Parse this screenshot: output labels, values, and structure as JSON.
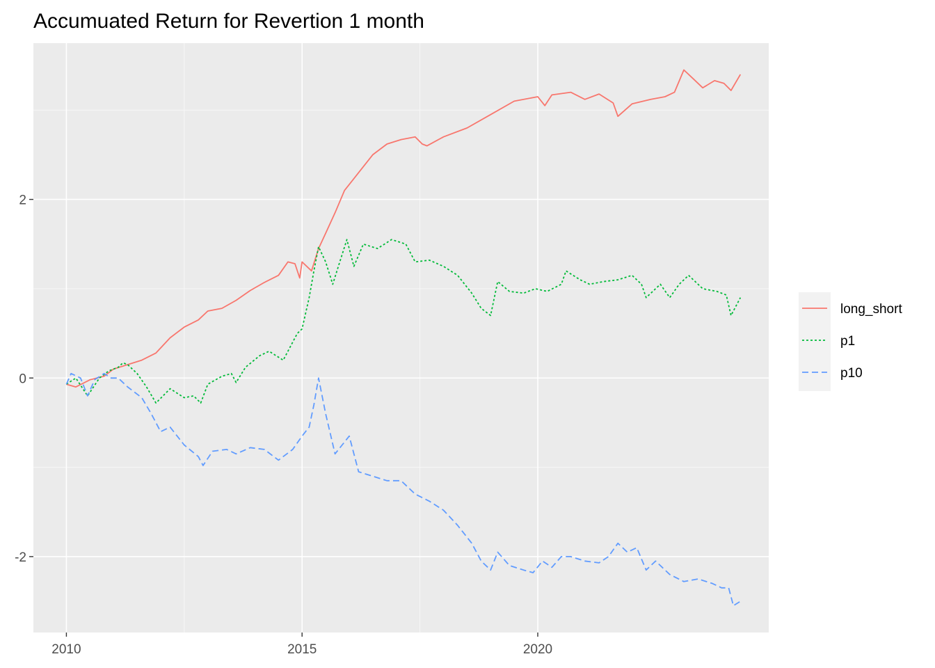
{
  "chart_data": {
    "type": "line",
    "title": "Accumuated Return for Revertion 1 month",
    "xlabel": "",
    "ylabel": "",
    "xlim": [
      2009.3,
      2024.9
    ],
    "ylim": [
      -2.85,
      3.75
    ],
    "x_ticks": [
      2010,
      2015,
      2020
    ],
    "x_tick_labels": [
      "2010",
      "2015",
      "2020"
    ],
    "y_ticks": [
      -2,
      0,
      2
    ],
    "y_tick_labels": [
      "-2",
      "0",
      "2"
    ],
    "grid": true,
    "legend_position": "right",
    "series": [
      {
        "name": "long_short",
        "color": "#F8766D",
        "dash": "solid",
        "points": [
          [
            2010.0,
            -0.07
          ],
          [
            2010.2,
            -0.1
          ],
          [
            2010.5,
            -0.02
          ],
          [
            2010.8,
            0.02
          ],
          [
            2011.0,
            0.1
          ],
          [
            2011.3,
            0.15
          ],
          [
            2011.6,
            0.2
          ],
          [
            2011.9,
            0.28
          ],
          [
            2012.2,
            0.45
          ],
          [
            2012.5,
            0.57
          ],
          [
            2012.8,
            0.65
          ],
          [
            2013.0,
            0.75
          ],
          [
            2013.3,
            0.78
          ],
          [
            2013.6,
            0.87
          ],
          [
            2013.9,
            0.98
          ],
          [
            2014.2,
            1.07
          ],
          [
            2014.5,
            1.15
          ],
          [
            2014.7,
            1.3
          ],
          [
            2014.85,
            1.28
          ],
          [
            2014.95,
            1.12
          ],
          [
            2015.0,
            1.3
          ],
          [
            2015.2,
            1.2
          ],
          [
            2015.35,
            1.45
          ],
          [
            2015.5,
            1.62
          ],
          [
            2015.7,
            1.85
          ],
          [
            2015.9,
            2.1
          ],
          [
            2016.2,
            2.3
          ],
          [
            2016.5,
            2.5
          ],
          [
            2016.8,
            2.62
          ],
          [
            2017.1,
            2.67
          ],
          [
            2017.4,
            2.7
          ],
          [
            2017.55,
            2.62
          ],
          [
            2017.65,
            2.6
          ],
          [
            2018.0,
            2.7
          ],
          [
            2018.5,
            2.8
          ],
          [
            2019.0,
            2.95
          ],
          [
            2019.5,
            3.1
          ],
          [
            2020.0,
            3.15
          ],
          [
            2020.15,
            3.05
          ],
          [
            2020.3,
            3.17
          ],
          [
            2020.7,
            3.2
          ],
          [
            2021.0,
            3.12
          ],
          [
            2021.3,
            3.18
          ],
          [
            2021.6,
            3.08
          ],
          [
            2021.7,
            2.93
          ],
          [
            2022.0,
            3.07
          ],
          [
            2022.4,
            3.12
          ],
          [
            2022.7,
            3.15
          ],
          [
            2022.9,
            3.2
          ],
          [
            2023.1,
            3.45
          ],
          [
            2023.3,
            3.35
          ],
          [
            2023.5,
            3.25
          ],
          [
            2023.75,
            3.33
          ],
          [
            2023.95,
            3.3
          ],
          [
            2024.1,
            3.22
          ],
          [
            2024.3,
            3.4
          ]
        ]
      },
      {
        "name": "p1",
        "color": "#00BA38",
        "dash": "dotted",
        "points": [
          [
            2010.0,
            -0.07
          ],
          [
            2010.2,
            0.0
          ],
          [
            2010.45,
            -0.2
          ],
          [
            2010.7,
            0.0
          ],
          [
            2010.9,
            0.08
          ],
          [
            2011.1,
            0.12
          ],
          [
            2011.2,
            0.17
          ],
          [
            2011.3,
            0.15
          ],
          [
            2011.5,
            0.05
          ],
          [
            2011.7,
            -0.1
          ],
          [
            2011.9,
            -0.28
          ],
          [
            2012.2,
            -0.12
          ],
          [
            2012.5,
            -0.22
          ],
          [
            2012.7,
            -0.2
          ],
          [
            2012.85,
            -0.28
          ],
          [
            2013.0,
            -0.07
          ],
          [
            2013.3,
            0.02
          ],
          [
            2013.5,
            0.05
          ],
          [
            2013.6,
            -0.05
          ],
          [
            2013.8,
            0.12
          ],
          [
            2014.1,
            0.25
          ],
          [
            2014.3,
            0.3
          ],
          [
            2014.6,
            0.2
          ],
          [
            2014.9,
            0.5
          ],
          [
            2015.0,
            0.55
          ],
          [
            2015.15,
            0.9
          ],
          [
            2015.25,
            1.2
          ],
          [
            2015.35,
            1.47
          ],
          [
            2015.5,
            1.3
          ],
          [
            2015.65,
            1.05
          ],
          [
            2015.8,
            1.3
          ],
          [
            2015.95,
            1.55
          ],
          [
            2016.1,
            1.25
          ],
          [
            2016.3,
            1.5
          ],
          [
            2016.6,
            1.45
          ],
          [
            2016.9,
            1.55
          ],
          [
            2017.2,
            1.5
          ],
          [
            2017.4,
            1.3
          ],
          [
            2017.7,
            1.32
          ],
          [
            2018.0,
            1.25
          ],
          [
            2018.3,
            1.15
          ],
          [
            2018.6,
            0.95
          ],
          [
            2018.8,
            0.78
          ],
          [
            2019.0,
            0.7
          ],
          [
            2019.15,
            1.08
          ],
          [
            2019.4,
            0.97
          ],
          [
            2019.7,
            0.95
          ],
          [
            2019.95,
            1.0
          ],
          [
            2020.2,
            0.97
          ],
          [
            2020.5,
            1.05
          ],
          [
            2020.6,
            1.2
          ],
          [
            2020.9,
            1.1
          ],
          [
            2021.1,
            1.05
          ],
          [
            2021.4,
            1.08
          ],
          [
            2021.7,
            1.1
          ],
          [
            2022.0,
            1.15
          ],
          [
            2022.2,
            1.05
          ],
          [
            2022.3,
            0.9
          ],
          [
            2022.6,
            1.05
          ],
          [
            2022.8,
            0.9
          ],
          [
            2023.0,
            1.05
          ],
          [
            2023.2,
            1.15
          ],
          [
            2023.5,
            1.0
          ],
          [
            2023.8,
            0.97
          ],
          [
            2024.0,
            0.93
          ],
          [
            2024.1,
            0.7
          ],
          [
            2024.3,
            0.9
          ]
        ]
      },
      {
        "name": "p10",
        "color": "#619CFF",
        "dash": "dashed",
        "points": [
          [
            2010.0,
            -0.07
          ],
          [
            2010.1,
            0.05
          ],
          [
            2010.3,
            0.0
          ],
          [
            2010.45,
            -0.2
          ],
          [
            2010.6,
            -0.02
          ],
          [
            2010.8,
            0.05
          ],
          [
            2010.95,
            0.0
          ],
          [
            2011.1,
            0.0
          ],
          [
            2011.3,
            -0.1
          ],
          [
            2011.6,
            -0.22
          ],
          [
            2011.8,
            -0.4
          ],
          [
            2012.0,
            -0.6
          ],
          [
            2012.2,
            -0.55
          ],
          [
            2012.5,
            -0.75
          ],
          [
            2012.8,
            -0.88
          ],
          [
            2012.9,
            -0.98
          ],
          [
            2013.1,
            -0.82
          ],
          [
            2013.4,
            -0.8
          ],
          [
            2013.6,
            -0.85
          ],
          [
            2013.9,
            -0.78
          ],
          [
            2014.2,
            -0.8
          ],
          [
            2014.5,
            -0.92
          ],
          [
            2014.8,
            -0.8
          ],
          [
            2015.0,
            -0.65
          ],
          [
            2015.15,
            -0.55
          ],
          [
            2015.25,
            -0.3
          ],
          [
            2015.35,
            0.0
          ],
          [
            2015.5,
            -0.4
          ],
          [
            2015.7,
            -0.85
          ],
          [
            2015.85,
            -0.75
          ],
          [
            2016.0,
            -0.65
          ],
          [
            2016.2,
            -1.05
          ],
          [
            2016.5,
            -1.1
          ],
          [
            2016.8,
            -1.15
          ],
          [
            2017.1,
            -1.15
          ],
          [
            2017.4,
            -1.3
          ],
          [
            2017.7,
            -1.38
          ],
          [
            2018.0,
            -1.48
          ],
          [
            2018.3,
            -1.65
          ],
          [
            2018.6,
            -1.85
          ],
          [
            2018.8,
            -2.05
          ],
          [
            2019.0,
            -2.15
          ],
          [
            2019.15,
            -1.95
          ],
          [
            2019.4,
            -2.1
          ],
          [
            2019.7,
            -2.15
          ],
          [
            2019.9,
            -2.18
          ],
          [
            2020.1,
            -2.05
          ],
          [
            2020.3,
            -2.12
          ],
          [
            2020.5,
            -2.0
          ],
          [
            2020.7,
            -2.0
          ],
          [
            2021.0,
            -2.05
          ],
          [
            2021.3,
            -2.07
          ],
          [
            2021.5,
            -2.0
          ],
          [
            2021.7,
            -1.85
          ],
          [
            2021.9,
            -1.95
          ],
          [
            2022.1,
            -1.9
          ],
          [
            2022.3,
            -2.15
          ],
          [
            2022.5,
            -2.05
          ],
          [
            2022.8,
            -2.2
          ],
          [
            2023.1,
            -2.28
          ],
          [
            2023.4,
            -2.25
          ],
          [
            2023.7,
            -2.3
          ],
          [
            2023.9,
            -2.35
          ],
          [
            2024.05,
            -2.35
          ],
          [
            2024.15,
            -2.55
          ],
          [
            2024.3,
            -2.5
          ]
        ]
      }
    ]
  }
}
